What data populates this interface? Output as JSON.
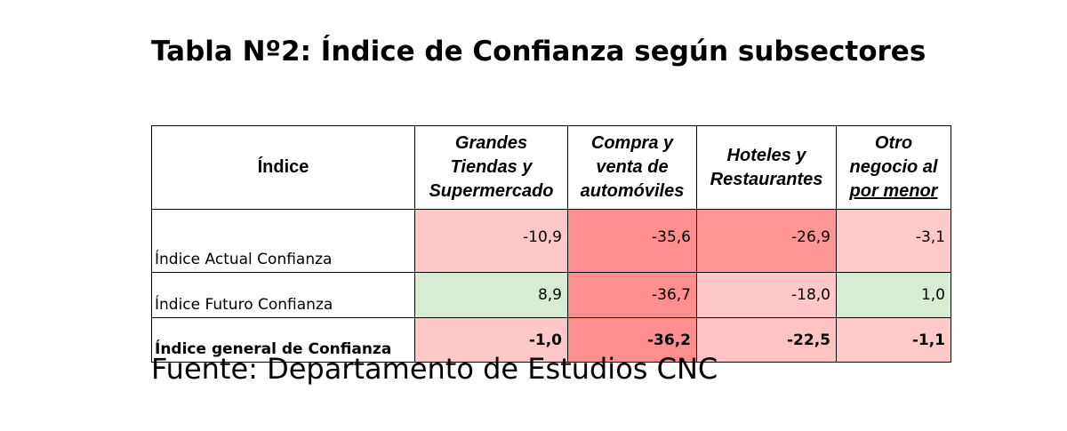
{
  "title": "Tabla Nº2: Índice de Confianza según subsectores",
  "table": {
    "header": {
      "index_label": "Índice",
      "columns": [
        [
          "Grandes",
          "Tiendas y",
          "Supermercado"
        ],
        [
          "Compra y",
          "venta de",
          "automóviles"
        ],
        [
          "Hoteles y",
          "Restaurantes"
        ],
        [
          "Otro",
          "negocio al",
          "por menor"
        ]
      ]
    },
    "rows": [
      {
        "label": "Índice Actual Confianza",
        "values": [
          "-10,9",
          "-35,6",
          "-26,9",
          "-3,1"
        ]
      },
      {
        "label": "Índice Futuro Confianza",
        "values": [
          "8,9",
          "-36,7",
          "-18,0",
          "1,0"
        ]
      },
      {
        "label": "Índice general de Confianza",
        "values": [
          "-1,0",
          "-36,2",
          "-22,5",
          "-1,1"
        ]
      }
    ],
    "cell_colors": [
      [
        "#ffc7c7",
        "#ff8e8e",
        "#ff9595",
        "#ffc9c9"
      ],
      [
        "#d7ecd3",
        "#ff8f8f",
        "#ffc7c7",
        "#d7ecd3"
      ],
      [
        "#ffc7c7",
        "#ff8f8f",
        "#ffc3c3",
        "#ffc9c9"
      ]
    ]
  },
  "source": "Fuente: Departamento de Estudios CNC"
}
